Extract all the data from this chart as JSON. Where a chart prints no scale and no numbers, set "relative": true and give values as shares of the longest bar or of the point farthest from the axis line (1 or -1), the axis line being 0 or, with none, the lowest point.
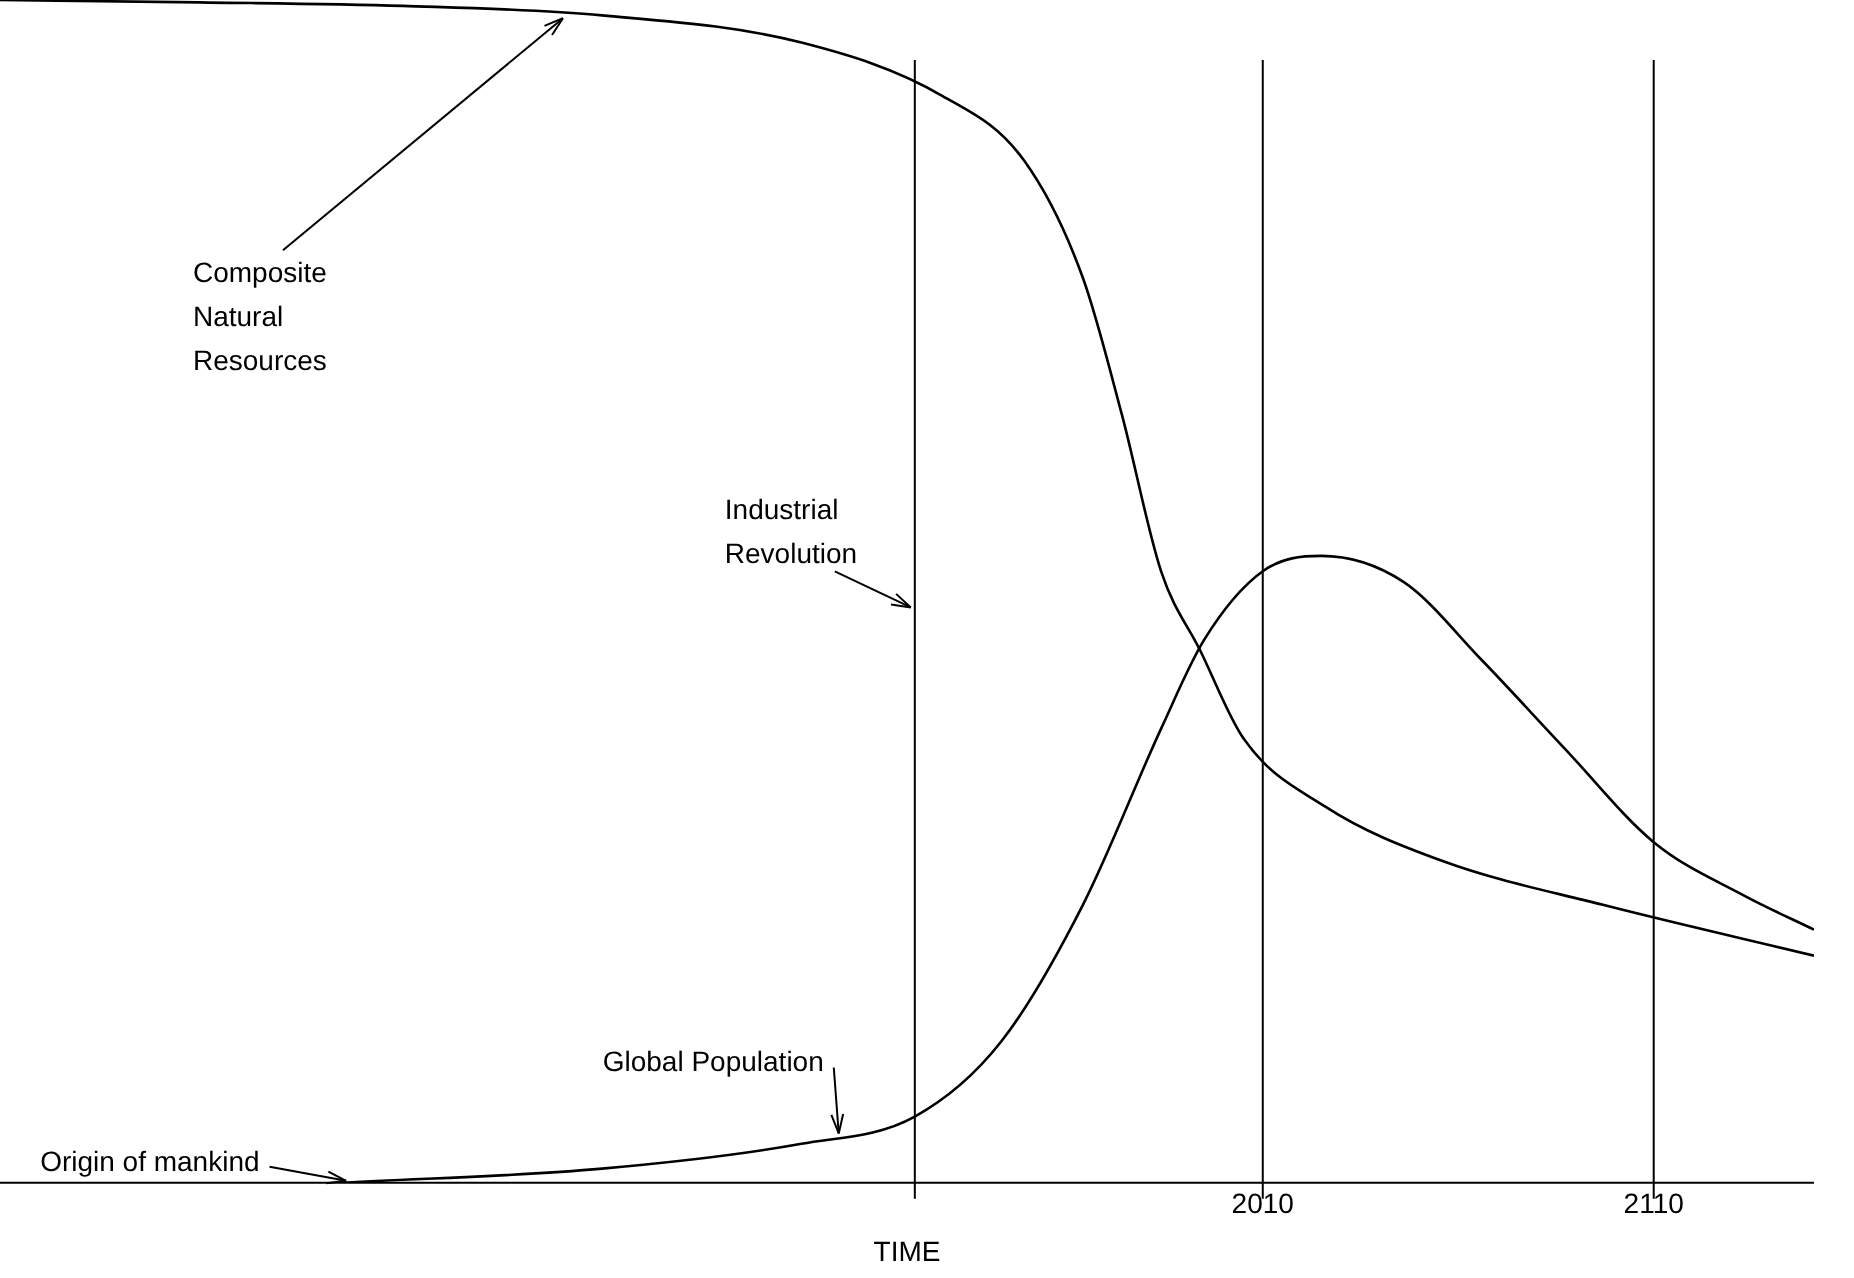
{
  "chart_data": {
    "type": "line",
    "relative": true,
    "xlabel": "TIME",
    "xlim": [
      1687,
      2151
    ],
    "xticks": [
      2010,
      2110
    ],
    "grid": false,
    "legend": false,
    "marker": "none",
    "line_style": "solid",
    "series": [
      {
        "color": "#000000",
        "x": [
          1687,
          1738,
          1790,
          1841,
          1892,
          1928,
          1949,
          1964,
          1974,
          1984,
          1994,
          2005,
          2026,
          2056,
          2097,
          2151
        ],
        "values": [
          1.0,
          0.998,
          0.995,
          0.987,
          0.964,
          0.919,
          0.864,
          0.765,
          0.649,
          0.517,
          0.45,
          0.376,
          0.318,
          0.272,
          0.235,
          0.192
        ]
      },
      {
        "color": "#000000",
        "x": [
          1774,
          1841,
          1892,
          1921,
          1943,
          1964,
          1984,
          1995,
          2010,
          2025,
          2046,
          2066,
          2087,
          2110,
          2133,
          2151
        ],
        "values": [
          0,
          0.012,
          0.033,
          0.056,
          0.119,
          0.235,
          0.384,
          0.459,
          0.517,
          0.53,
          0.508,
          0.442,
          0.368,
          0.288,
          0.243,
          0.214
        ]
      }
    ],
    "ref_lines": [
      {
        "axis": "x",
        "value": 1921,
        "label": "Industrial Revolution"
      },
      {
        "axis": "x",
        "value": 2010
      },
      {
        "axis": "x",
        "value": 2110
      }
    ],
    "annotations": [
      {
        "text": "Composite Natural Resources",
        "x": 1831,
        "y": 0.988
      },
      {
        "text": "Origin of mankind",
        "x": 1774,
        "y": 0
      },
      {
        "text": "Global Population",
        "x": 1900,
        "y": 0.04
      }
    ]
  }
}
